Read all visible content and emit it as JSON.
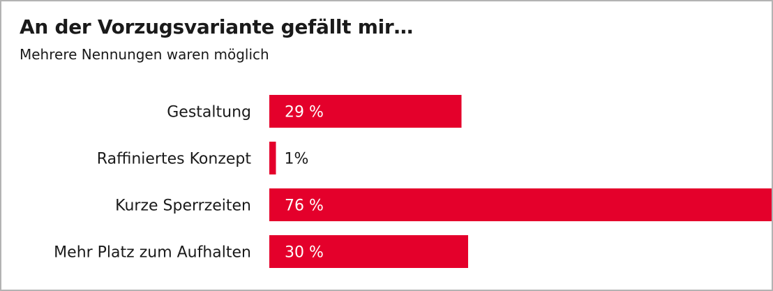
{
  "chart_data": {
    "type": "bar",
    "orientation": "horizontal",
    "title": "An der Vorzugsvariante gefällt mir…",
    "subtitle": "Mehrere Nennungen waren möglich",
    "categories": [
      "Gestaltung",
      "Raffiniertes Konzept",
      "Kurze Sperrzeiten",
      "Mehr Platz zum Aufhalten"
    ],
    "values": [
      29,
      1,
      76,
      30
    ],
    "value_labels": [
      "29 %",
      "1%",
      "76 %",
      "30 %"
    ],
    "unit": "%",
    "xlim": [
      0,
      76
    ],
    "grid": false,
    "legend": "none",
    "bar_color": "#e4002b",
    "label_inside_color": "#ffffff",
    "label_outside_color": "#1a1a1a"
  }
}
